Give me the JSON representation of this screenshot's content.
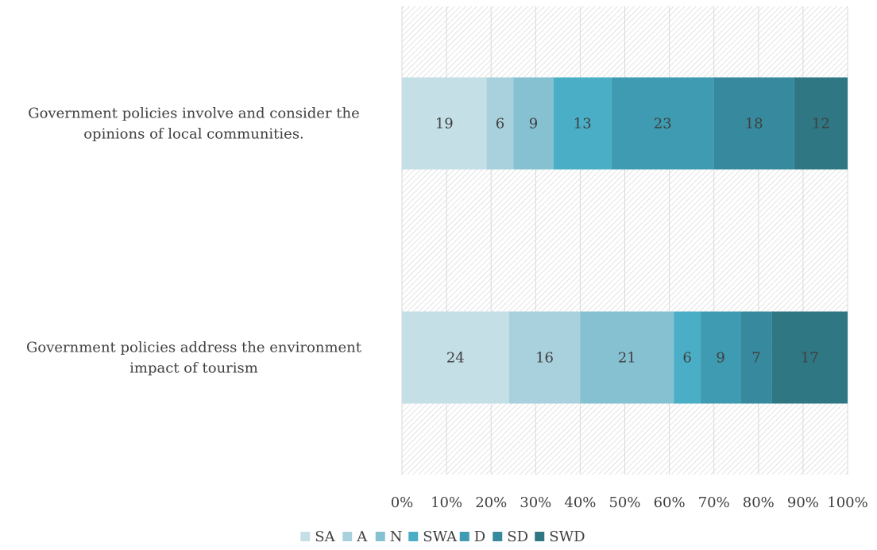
{
  "chart_data": {
    "type": "bar",
    "orientation": "horizontal",
    "stacked": "100%",
    "categories": [
      "Government policies involve and consider the opinions of local communities.",
      "Government policies address the environment impact of tourism"
    ],
    "series": [
      {
        "name": "SA",
        "values": [
          19,
          24
        ],
        "color": "#c5dfe6"
      },
      {
        "name": "A",
        "values": [
          6,
          16
        ],
        "color": "#a9d1dd"
      },
      {
        "name": "N",
        "values": [
          9,
          21
        ],
        "color": "#86c1d2"
      },
      {
        "name": "SWA",
        "values": [
          13,
          6
        ],
        "color": "#4aaec6"
      },
      {
        "name": "D",
        "values": [
          23,
          9
        ],
        "color": "#3e9bb1"
      },
      {
        "name": "SD",
        "values": [
          18,
          7
        ],
        "color": "#378a9e"
      },
      {
        "name": "SWD",
        "values": [
          12,
          17
        ],
        "color": "#307784"
      }
    ],
    "xlim": [
      0,
      100
    ],
    "x_ticks": [
      "0%",
      "10%",
      "20%",
      "30%",
      "40%",
      "50%",
      "60%",
      "70%",
      "80%",
      "90%",
      "100%"
    ],
    "grid": true,
    "plot_background": "hatched",
    "legend": "bottom",
    "title": "",
    "xlabel": "",
    "ylabel": ""
  }
}
